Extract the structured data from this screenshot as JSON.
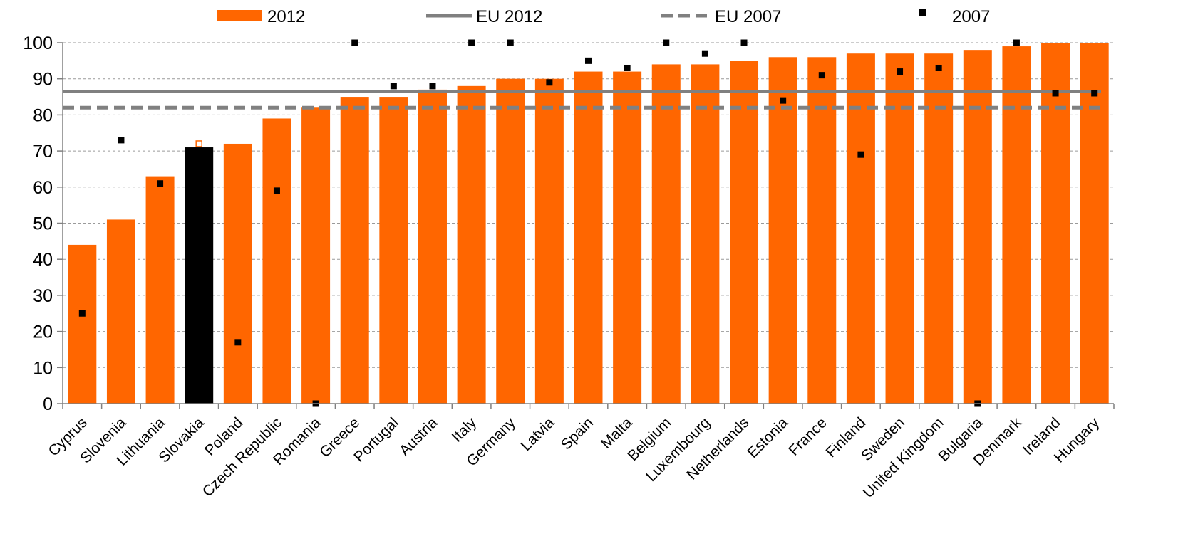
{
  "chart_data": {
    "type": "bar",
    "categories": [
      "Cyprus",
      "Slovenia",
      "Lithuania",
      "Slovakia",
      "Poland",
      "Czech Republic",
      "Romania",
      "Greece",
      "Portugal",
      "Austria",
      "Italy",
      "Germany",
      "Latvia",
      "Spain",
      "Malta",
      "Belgium",
      "Luxembourg",
      "Netherlands",
      "Estonia",
      "France",
      "Finland",
      "Sweden",
      "United Kingdom",
      "Bulgaria",
      "Denmark",
      "Ireland",
      "Hungary"
    ],
    "series": [
      {
        "name": "2012",
        "type": "bar",
        "values": [
          44,
          51,
          63,
          71,
          72,
          79,
          82,
          85,
          85,
          87,
          88,
          90,
          90,
          92,
          92,
          94,
          94,
          95,
          96,
          96,
          97,
          97,
          97,
          98,
          99,
          100,
          100
        ]
      },
      {
        "name": "2007",
        "type": "scatter",
        "values": [
          25,
          73,
          61,
          72,
          17,
          59,
          0,
          100,
          88,
          88,
          100,
          100,
          89,
          95,
          93,
          100,
          97,
          100,
          84,
          91,
          69,
          92,
          93,
          0,
          100,
          86,
          86
        ]
      },
      {
        "name": "EU 2012",
        "type": "reference-line",
        "value": 86.5
      },
      {
        "name": "EU 2007",
        "type": "reference-line",
        "value": 82
      }
    ],
    "highlight": {
      "category": "Slovakia",
      "bar_color": "#000000"
    },
    "ylim": [
      0,
      100
    ],
    "yticks": [
      0,
      10,
      20,
      30,
      40,
      50,
      60,
      70,
      80,
      90,
      100
    ],
    "grid": "horizontal dashed",
    "legend_position": "top",
    "colors": {
      "bar": "#ff6600",
      "highlight": "#000000",
      "eu2012": "#808080",
      "eu2007": "#808080",
      "marker": "#000000",
      "highlight_marker": "#ff6600"
    },
    "title": "",
    "xlabel": "",
    "ylabel": ""
  }
}
